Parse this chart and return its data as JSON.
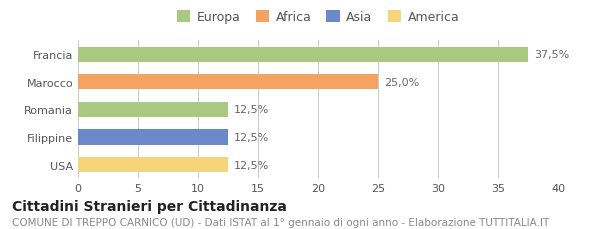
{
  "categories": [
    "Francia",
    "Marocco",
    "Romania",
    "Filippine",
    "USA"
  ],
  "values": [
    37.5,
    25.0,
    12.5,
    12.5,
    12.5
  ],
  "bar_colors": [
    "#a8c97f",
    "#f4a460",
    "#a8c97f",
    "#6a89c8",
    "#f5d57a"
  ],
  "value_labels": [
    "37,5%",
    "25,0%",
    "12,5%",
    "12,5%",
    "12,5%"
  ],
  "legend_labels": [
    "Europa",
    "Africa",
    "Asia",
    "America"
  ],
  "legend_colors": [
    "#a8c97f",
    "#f4a460",
    "#6a89c8",
    "#f5d57a"
  ],
  "xlim": [
    0,
    40
  ],
  "xticks": [
    0,
    5,
    10,
    15,
    20,
    25,
    30,
    35,
    40
  ],
  "title_bold": "Cittadini Stranieri per Cittadinanza",
  "subtitle": "COMUNE DI TREPPO CARNICO (UD) - Dati ISTAT al 1° gennaio di ogni anno - Elaborazione TUTTITALIA.IT",
  "background_color": "#ffffff",
  "bar_height": 0.55,
  "title_fontsize": 10,
  "subtitle_fontsize": 7.5,
  "label_fontsize": 8,
  "tick_fontsize": 8,
  "legend_fontsize": 9
}
